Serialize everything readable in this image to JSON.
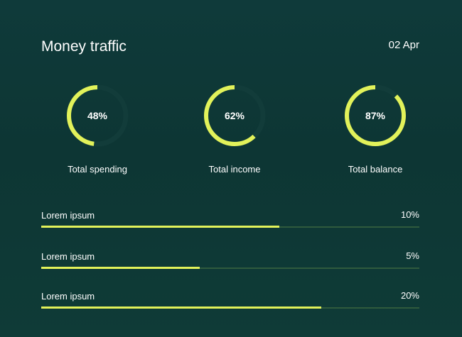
{
  "header": {
    "title": "Money traffic",
    "date": "02 Apr"
  },
  "accent": "#e2f25a",
  "gauges": [
    {
      "label": "Total spending",
      "percent_text": "48%",
      "value": 48
    },
    {
      "label": "Total income",
      "percent_text": "62%",
      "value": 62
    },
    {
      "label": "Total balance",
      "percent_text": "87%",
      "value": 87
    }
  ],
  "bars": [
    {
      "label": "Lorem ipsum",
      "value_text": "10%",
      "fill_fraction": 0.63
    },
    {
      "label": "Lorem ipsum",
      "value_text": "5%",
      "fill_fraction": 0.42
    },
    {
      "label": "Lorem ipsum",
      "value_text": "20%",
      "fill_fraction": 0.74
    }
  ]
}
